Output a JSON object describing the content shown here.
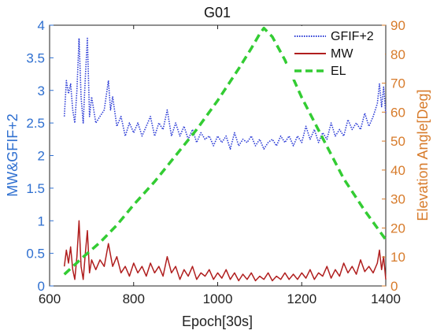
{
  "chart_data": {
    "type": "line",
    "title": "G01",
    "xlabel": "Epoch[30s]",
    "ylabel_left": "MW&GFIF+2",
    "ylabel_right": "Elevation Angle[Deg]",
    "xlim": [
      600,
      1400
    ],
    "ylim_left": [
      0,
      4
    ],
    "ylim_right": [
      0,
      90
    ],
    "x_ticks": [
      "600",
      "800",
      "1000",
      "1200",
      "1400"
    ],
    "y_ticks_left": [
      "0",
      "0.5",
      "1",
      "1.5",
      "2",
      "2.5",
      "3",
      "3.5",
      "4"
    ],
    "y_ticks_right": [
      "0",
      "10",
      "20",
      "30",
      "40",
      "50",
      "60",
      "70",
      "80",
      "90"
    ],
    "grid": false,
    "legend_position": "top-right",
    "series": [
      {
        "name": "GFIF+2",
        "axis": "left",
        "style": "dotted",
        "color": "#2c3cd6",
        "x": [
          635,
          640,
          645,
          650,
          655,
          660,
          665,
          670,
          675,
          680,
          685,
          690,
          695,
          700,
          710,
          720,
          730,
          740,
          745,
          750,
          760,
          770,
          780,
          790,
          800,
          810,
          820,
          830,
          840,
          850,
          860,
          870,
          880,
          890,
          900,
          910,
          920,
          930,
          940,
          950,
          960,
          970,
          980,
          990,
          1000,
          1010,
          1020,
          1030,
          1040,
          1050,
          1060,
          1070,
          1080,
          1090,
          1100,
          1110,
          1120,
          1130,
          1140,
          1150,
          1160,
          1170,
          1180,
          1190,
          1200,
          1210,
          1220,
          1230,
          1240,
          1250,
          1260,
          1270,
          1280,
          1290,
          1300,
          1310,
          1320,
          1330,
          1340,
          1350,
          1360,
          1370,
          1380,
          1385,
          1390,
          1395,
          1400
        ],
        "y": [
          2.6,
          3.15,
          2.95,
          3.1,
          2.7,
          2.5,
          3.0,
          3.8,
          2.9,
          2.5,
          3.2,
          3.8,
          2.6,
          2.9,
          2.5,
          2.6,
          2.7,
          3.15,
          2.7,
          2.9,
          2.45,
          2.6,
          2.3,
          2.5,
          2.35,
          2.5,
          2.3,
          2.45,
          2.6,
          2.3,
          2.5,
          2.4,
          2.7,
          2.3,
          2.5,
          2.3,
          2.45,
          2.25,
          2.4,
          2.2,
          2.35,
          2.25,
          2.3,
          2.15,
          2.3,
          2.2,
          2.3,
          2.1,
          2.35,
          2.15,
          2.25,
          2.2,
          2.3,
          2.15,
          2.25,
          2.1,
          2.2,
          2.25,
          2.15,
          2.3,
          2.2,
          2.3,
          2.15,
          2.3,
          2.2,
          2.45,
          2.25,
          2.4,
          2.2,
          2.35,
          2.25,
          2.5,
          2.3,
          2.4,
          2.3,
          2.55,
          2.4,
          2.5,
          2.4,
          2.65,
          2.45,
          2.6,
          2.8,
          3.1,
          2.75,
          3.05,
          2.65
        ]
      },
      {
        "name": "MW",
        "axis": "left",
        "style": "solid",
        "color": "#b01e1e",
        "x": [
          635,
          640,
          645,
          650,
          655,
          660,
          665,
          670,
          675,
          680,
          685,
          690,
          695,
          700,
          710,
          720,
          730,
          740,
          750,
          760,
          770,
          780,
          790,
          800,
          810,
          820,
          830,
          840,
          850,
          860,
          870,
          880,
          890,
          900,
          910,
          920,
          930,
          940,
          950,
          960,
          970,
          980,
          990,
          1000,
          1010,
          1020,
          1030,
          1040,
          1050,
          1060,
          1070,
          1080,
          1090,
          1100,
          1110,
          1120,
          1130,
          1140,
          1150,
          1160,
          1170,
          1180,
          1190,
          1200,
          1210,
          1220,
          1230,
          1240,
          1250,
          1260,
          1270,
          1280,
          1290,
          1300,
          1310,
          1320,
          1330,
          1340,
          1350,
          1360,
          1370,
          1380,
          1385,
          1390,
          1395,
          1400
        ],
        "y": [
          0.3,
          0.55,
          0.35,
          0.6,
          0.25,
          0.1,
          0.45,
          1.0,
          0.3,
          0.1,
          0.5,
          0.85,
          0.2,
          0.4,
          0.25,
          0.4,
          0.3,
          0.65,
          0.3,
          0.45,
          0.2,
          0.3,
          0.15,
          0.35,
          0.2,
          0.3,
          0.15,
          0.35,
          0.2,
          0.3,
          0.15,
          0.45,
          0.2,
          0.3,
          0.1,
          0.25,
          0.15,
          0.3,
          0.1,
          0.2,
          0.15,
          0.25,
          0.1,
          0.2,
          0.12,
          0.25,
          0.1,
          0.2,
          0.08,
          0.18,
          0.1,
          0.2,
          0.08,
          0.15,
          0.1,
          0.2,
          0.08,
          0.15,
          0.1,
          0.2,
          0.1,
          0.18,
          0.1,
          0.2,
          0.12,
          0.25,
          0.1,
          0.2,
          0.15,
          0.3,
          0.12,
          0.25,
          0.15,
          0.35,
          0.2,
          0.3,
          0.18,
          0.4,
          0.22,
          0.3,
          0.2,
          0.35,
          0.55,
          0.25,
          0.45,
          0.1
        ]
      },
      {
        "name": "EL",
        "axis": "right",
        "style": "dashed",
        "color": "#33cc33",
        "x": [
          635,
          680,
          720,
          760,
          800,
          850,
          900,
          950,
          1000,
          1050,
          1080,
          1100,
          1110,
          1130,
          1160,
          1200,
          1250,
          1300,
          1350,
          1400
        ],
        "y": [
          4,
          10,
          15,
          21,
          28,
          36,
          45,
          54,
          64,
          75,
          82,
          87,
          89,
          86,
          78,
          65,
          51,
          37,
          26,
          16
        ]
      }
    ]
  }
}
